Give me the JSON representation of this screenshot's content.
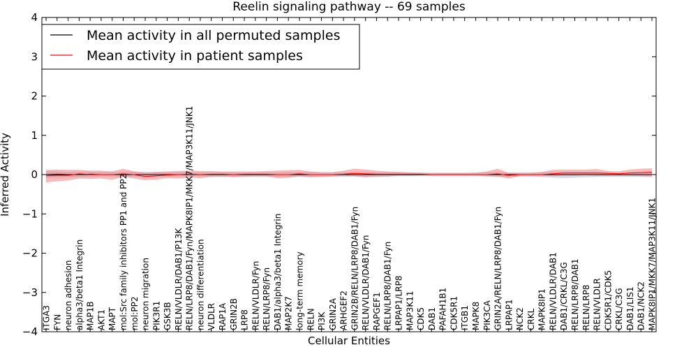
{
  "chart_data": {
    "type": "line",
    "title": "Reelin signaling pathway -- 69 samples",
    "xlabel": "Cellular Entities",
    "ylabel": "Inferred Activity",
    "ylim": [
      -4,
      4
    ],
    "yticks": [
      4,
      3,
      2,
      1,
      0,
      -1,
      -2,
      -3,
      -4
    ],
    "ytick_labels": [
      "4",
      "3",
      "2",
      "1",
      "0",
      "−1",
      "−2",
      "−3",
      "−4"
    ],
    "legend_position": "upper-left",
    "categories": [
      "ITGA3",
      "FYN",
      "neuron adhesion",
      "alpha3/beta1 Integrin",
      "MAP1B",
      "AKT1",
      "MAPT",
      "mol:Src family inhibitors PP1 and PP2",
      "mol:PP2",
      "neuron migration",
      "PIK3R1",
      "GSK3B",
      "RELN/VLDLR/DAB1/P13K",
      "RELN/LRP8/DAB1/Fyn/MAPK8IP1/MKK7/MAP3K11/JNK1",
      "neuron differentiation",
      "VLDLR",
      "RAP1A",
      "GRIN2B",
      "LRP8",
      "RELN/VLDLR/Fyn",
      "RELN/LRP8/Fyn",
      "DAB1/alpha3/beta1 Integrin",
      "MAP2K7",
      "long-term memory",
      "RELN",
      "PI3K",
      "GRIN2A",
      "ARHGEF2",
      "GRIN2B/RELN/LRP8/DAB1/Fyn",
      "RELN/VLDLR/DAB1/Fyn",
      "RAPGEF1",
      "RELN/LRP8/DAB1/Fyn",
      "LRPAP1/LRP8",
      "MAP3K11",
      "CDK5",
      "DAB1",
      "PAFAH1B1",
      "CDK5R1",
      "ITGB1",
      "MAPK8",
      "PIK3CA",
      "GRIN2A/RELN/LRP8/DAB1/Fyn",
      "LRPAP1",
      "NCK2",
      "CRKL",
      "MAPK8IP1",
      "RELN/VLDLR/DAB1",
      "DAB1/CRKL/C3G",
      "RELN/LRP8/DAB1",
      "RELN/LRP8",
      "RELN/VLDLR",
      "CDK5R1/CDK5",
      "CRKL/C3G",
      "DAB1/LIS1",
      "DAB1/NCK2",
      "MAPK8IP1/MKK7/MAP3K11/JNK1"
    ],
    "series": [
      {
        "name": "Mean activity in all permuted samples",
        "color": "#000000",
        "values": [
          0.0,
          0.01,
          0.0,
          0.0,
          0.01,
          0.0,
          0.0,
          0.0,
          0.0,
          0.0,
          0.0,
          0.0,
          0.0,
          0.0,
          0.0,
          0.0,
          0.0,
          0.0,
          0.0,
          0.0,
          0.0,
          0.0,
          0.0,
          0.0,
          0.0,
          0.0,
          0.0,
          0.0,
          0.0,
          0.0,
          0.0,
          0.0,
          0.0,
          0.0,
          0.0,
          0.0,
          0.0,
          0.0,
          0.0,
          0.0,
          0.0,
          0.0,
          0.0,
          0.0,
          0.0,
          0.0,
          0.0,
          0.0,
          0.0,
          0.0,
          0.0,
          0.0,
          0.0,
          0.0,
          0.0,
          0.0
        ],
        "lower": [
          -0.08,
          -0.08,
          -0.07,
          -0.07,
          -0.06,
          -0.05,
          -0.05,
          -0.06,
          -0.05,
          -0.06,
          -0.06,
          -0.05,
          -0.05,
          -0.04,
          -0.05,
          -0.05,
          -0.06,
          -0.05,
          -0.06,
          -0.05,
          -0.05,
          -0.06,
          -0.06,
          -0.06,
          -0.06,
          -0.05,
          -0.05,
          -0.06,
          -0.05,
          -0.06,
          -0.06,
          -0.05,
          -0.04,
          -0.04,
          -0.04,
          -0.04,
          -0.04,
          -0.04,
          -0.04,
          -0.04,
          -0.05,
          -0.06,
          -0.06,
          -0.05,
          -0.05,
          -0.06,
          -0.08,
          -0.09,
          -0.08,
          -0.07,
          -0.06,
          -0.06,
          -0.06,
          -0.06,
          -0.06,
          -0.06
        ],
        "upper": [
          0.09,
          0.09,
          0.07,
          0.08,
          0.08,
          0.07,
          0.07,
          0.08,
          0.08,
          0.07,
          0.07,
          0.07,
          0.07,
          0.07,
          0.06,
          0.06,
          0.06,
          0.06,
          0.06,
          0.06,
          0.06,
          0.06,
          0.07,
          0.07,
          0.07,
          0.06,
          0.06,
          0.06,
          0.07,
          0.07,
          0.06,
          0.06,
          0.06,
          0.05,
          0.05,
          0.05,
          0.05,
          0.05,
          0.05,
          0.05,
          0.06,
          0.06,
          0.05,
          0.05,
          0.05,
          0.06,
          0.07,
          0.07,
          0.07,
          0.07,
          0.06,
          0.06,
          0.06,
          0.06,
          0.06,
          0.07
        ]
      },
      {
        "name": "Mean activity in patient samples",
        "color": "#ff0000",
        "fill": "#f08080",
        "values": [
          -0.03,
          -0.02,
          -0.02,
          0.02,
          0.0,
          0.0,
          0.0,
          0.02,
          0.0,
          -0.05,
          -0.03,
          -0.01,
          0.0,
          0.01,
          0.0,
          0.01,
          0.01,
          0.0,
          0.01,
          0.01,
          0.01,
          0.0,
          0.0,
          0.02,
          0.0,
          0.0,
          0.0,
          0.01,
          0.03,
          0.02,
          0.01,
          0.01,
          0.01,
          0.01,
          0.01,
          0.0,
          0.0,
          0.0,
          0.0,
          0.0,
          0.0,
          0.02,
          -0.02,
          0.0,
          0.0,
          0.0,
          0.02,
          0.04,
          0.04,
          0.04,
          0.04,
          0.03,
          0.02,
          0.04,
          0.05,
          0.06
        ],
        "lower": [
          -0.2,
          -0.17,
          -0.15,
          -0.1,
          -0.11,
          -0.1,
          -0.13,
          -0.06,
          -0.1,
          -0.14,
          -0.13,
          -0.09,
          -0.1,
          -0.08,
          -0.09,
          -0.06,
          -0.05,
          -0.07,
          -0.05,
          -0.05,
          -0.05,
          -0.09,
          -0.08,
          -0.04,
          -0.07,
          -0.06,
          -0.05,
          -0.03,
          -0.04,
          -0.07,
          -0.05,
          -0.05,
          -0.03,
          -0.03,
          -0.02,
          -0.02,
          -0.02,
          -0.02,
          -0.02,
          -0.02,
          -0.04,
          -0.05,
          -0.1,
          -0.04,
          -0.04,
          -0.04,
          -0.04,
          -0.03,
          -0.03,
          -0.02,
          -0.03,
          -0.03,
          -0.03,
          -0.03,
          -0.04,
          -0.05
        ],
        "upper": [
          0.12,
          0.13,
          0.12,
          0.12,
          0.1,
          0.1,
          0.08,
          0.15,
          0.08,
          0.05,
          0.07,
          0.08,
          0.09,
          0.1,
          0.09,
          0.09,
          0.08,
          0.08,
          0.08,
          0.08,
          0.09,
          0.1,
          0.11,
          0.12,
          0.08,
          0.06,
          0.06,
          0.1,
          0.15,
          0.13,
          0.1,
          0.08,
          0.07,
          0.06,
          0.05,
          0.04,
          0.04,
          0.04,
          0.04,
          0.05,
          0.08,
          0.15,
          0.05,
          0.05,
          0.05,
          0.07,
          0.12,
          0.13,
          0.13,
          0.13,
          0.14,
          0.09,
          0.08,
          0.13,
          0.15,
          0.16
        ]
      }
    ]
  }
}
